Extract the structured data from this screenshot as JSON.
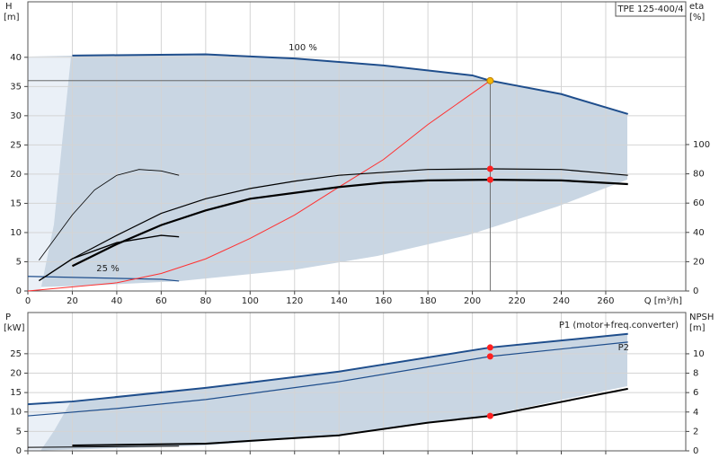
{
  "chart_data": [
    {
      "type": "line",
      "title": "TPE 125-400/4",
      "xlabel": "Q [m³/h]",
      "ylabel": "H",
      "ylabel_unit": "[m]",
      "y2label": "eta",
      "y2label_unit": "[%]",
      "xlim": [
        0,
        296
      ],
      "xticks": [
        0,
        20,
        40,
        60,
        80,
        100,
        120,
        140,
        160,
        180,
        200,
        220,
        240,
        260
      ],
      "xtick_labels": true,
      "ylim": [
        0,
        49.5
      ],
      "yticks": [
        0,
        5,
        10,
        15,
        20,
        25,
        30,
        35,
        40
      ],
      "y2lim": [
        0,
        197.5
      ],
      "y2ticks": [
        0,
        20,
        40,
        60,
        80,
        100
      ],
      "grid": true,
      "series": [
        {
          "name": "100 %",
          "color": "#1f4e8c",
          "width": 2,
          "axis": "y",
          "x": [
            20,
            80,
            120,
            160,
            200,
            208,
            240,
            270
          ],
          "values": [
            40.3,
            40.5,
            39.8,
            38.6,
            36.9,
            36,
            33.7,
            30.3
          ]
        },
        {
          "name": "25 %",
          "color": "#1f4e8c",
          "width": 1.2,
          "axis": "y",
          "x": [
            0,
            60,
            68
          ],
          "values": [
            2.5,
            2,
            1.7
          ]
        },
        {
          "color": "#ff3030",
          "width": 1,
          "axis": "y",
          "x": [
            0,
            40,
            60,
            80,
            100,
            120,
            140,
            160,
            180,
            208
          ],
          "values": [
            0,
            1.4,
            3,
            5.5,
            9,
            13,
            17.8,
            22.5,
            28.5,
            36
          ]
        },
        {
          "color": "#000000",
          "width": 1.2,
          "axis": "y2",
          "x": [
            20,
            40,
            60,
            80,
            100,
            120,
            140,
            160,
            180,
            208,
            240,
            270
          ],
          "values": [
            22,
            38,
            53,
            63,
            70,
            75,
            79,
            81,
            83,
            83.4,
            83,
            79
          ]
        },
        {
          "color": "#000000",
          "width": 2.2,
          "axis": "y2",
          "x": [
            20,
            40,
            60,
            80,
            100,
            120,
            140,
            160,
            180,
            208,
            240,
            270
          ],
          "values": [
            17,
            32,
            45,
            55,
            63,
            67,
            71,
            74,
            75.5,
            76,
            75.5,
            73
          ]
        },
        {
          "color": "#000000",
          "width": 0.8,
          "axis": "y2",
          "x": [
            5,
            20,
            30,
            40,
            50,
            60,
            68
          ],
          "values": [
            21,
            52,
            69,
            79,
            83,
            82,
            79
          ]
        },
        {
          "color": "#000000",
          "width": 1.4,
          "axis": "y2",
          "x": [
            5,
            20,
            40,
            60,
            68
          ],
          "values": [
            7,
            22,
            33,
            38,
            37
          ]
        }
      ],
      "points": [
        {
          "x": 208,
          "y": 36,
          "axis": "y",
          "color": "#f5b800"
        },
        {
          "x": 208,
          "y": 83.4,
          "axis": "y2",
          "color": "#ff2020"
        },
        {
          "x": 208,
          "y": 76,
          "axis": "y2",
          "color": "#ff2020"
        }
      ]
    },
    {
      "type": "line",
      "ylabel": "P",
      "ylabel_unit": "[kW]",
      "y2label": "NPSH",
      "y2label_unit": "[m]",
      "xlim": [
        0,
        296
      ],
      "xticks": [
        0,
        20,
        40,
        60,
        80,
        100,
        120,
        140,
        160,
        180,
        200,
        220,
        240,
        260
      ],
      "xtick_labels": false,
      "ylim": [
        0,
        35.6
      ],
      "yticks": [
        0,
        5,
        10,
        15,
        20,
        25
      ],
      "y2lim": [
        0,
        14.25
      ],
      "y2ticks": [
        0,
        2,
        4,
        6,
        8,
        10
      ],
      "grid": true,
      "series": [
        {
          "name": "P1 (motor+freq.converter)",
          "color": "#1f4e8c",
          "width": 2,
          "axis": "y",
          "x": [
            0,
            20,
            80,
            140,
            208,
            270
          ],
          "values": [
            12,
            12.7,
            16.2,
            20.4,
            26.6,
            30.1
          ]
        },
        {
          "name": "P2",
          "color": "#1f4e8c",
          "width": 1.2,
          "axis": "y",
          "x": [
            0,
            40,
            80,
            140,
            208,
            270
          ],
          "values": [
            9,
            10.9,
            13.2,
            17.8,
            24.3,
            28
          ]
        },
        {
          "color": "#000000",
          "width": 2,
          "axis": "y2",
          "x": [
            20,
            80,
            140,
            180,
            208,
            270
          ],
          "values": [
            0.56,
            0.74,
            1.6,
            2.9,
            3.6,
            6.4
          ]
        },
        {
          "color": "#000000",
          "width": 1,
          "axis": "y",
          "x": [
            0,
            68
          ],
          "values": [
            0.9,
            1.2
          ]
        }
      ],
      "points": [
        {
          "x": 208,
          "y": 26.6,
          "axis": "y",
          "color": "#ff2020"
        },
        {
          "x": 208,
          "y": 24.3,
          "axis": "y",
          "color": "#ff2020"
        },
        {
          "x": 208,
          "y": 3.6,
          "axis": "y2",
          "color": "#ff2020"
        }
      ]
    }
  ]
}
